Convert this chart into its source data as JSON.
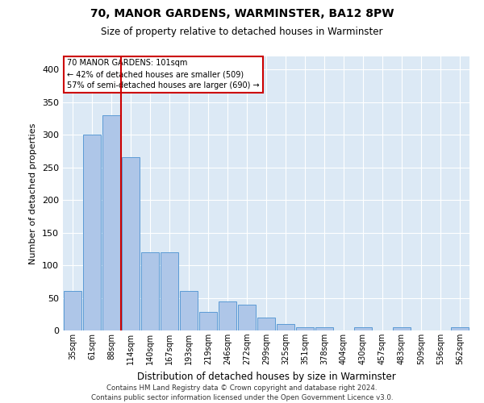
{
  "title": "70, MANOR GARDENS, WARMINSTER, BA12 8PW",
  "subtitle": "Size of property relative to detached houses in Warminster",
  "xlabel": "Distribution of detached houses by size in Warminster",
  "ylabel": "Number of detached properties",
  "bin_labels": [
    "35sqm",
    "61sqm",
    "88sqm",
    "114sqm",
    "140sqm",
    "167sqm",
    "193sqm",
    "219sqm",
    "246sqm",
    "272sqm",
    "299sqm",
    "325sqm",
    "351sqm",
    "378sqm",
    "404sqm",
    "430sqm",
    "457sqm",
    "483sqm",
    "509sqm",
    "536sqm",
    "562sqm"
  ],
  "bar_heights": [
    60,
    300,
    330,
    265,
    120,
    120,
    60,
    28,
    45,
    40,
    20,
    10,
    5,
    5,
    0,
    5,
    0,
    5,
    0,
    0,
    5
  ],
  "bar_color": "#aec6e8",
  "bar_edge_color": "#5b9bd5",
  "red_line_color": "#cc0000",
  "annotation_box_color": "#ffffff",
  "annotation_box_edge": "#cc0000",
  "annotation_text_line1": "70 MANOR GARDENS: 101sqm",
  "annotation_text_line2": "← 42% of detached houses are smaller (509)",
  "annotation_text_line3": "57% of semi-detached houses are larger (690) →",
  "red_line_x": 2.5,
  "ylim": [
    0,
    420
  ],
  "yticks": [
    0,
    50,
    100,
    150,
    200,
    250,
    300,
    350,
    400
  ],
  "footer_line1": "Contains HM Land Registry data © Crown copyright and database right 2024.",
  "footer_line2": "Contains public sector information licensed under the Open Government Licence v3.0.",
  "plot_bg_color": "#dce9f5",
  "fig_bg_color": "#ffffff"
}
